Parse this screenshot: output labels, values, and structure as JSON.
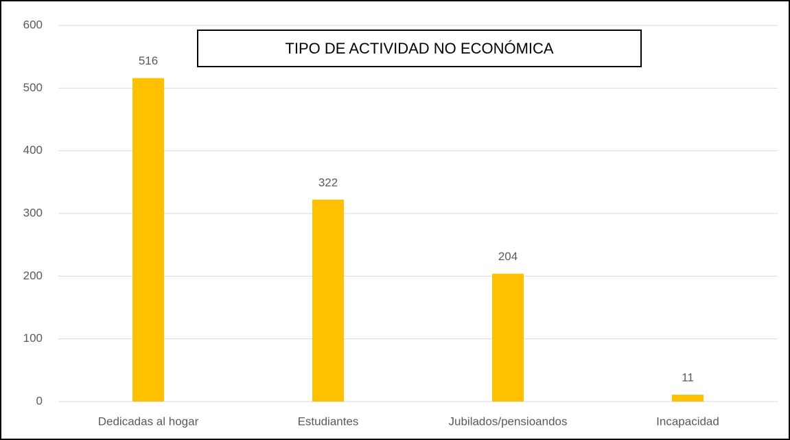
{
  "chart_data": {
    "type": "bar",
    "title": "TIPO DE ACTIVIDAD NO ECONÓMICA",
    "categories": [
      "Dedicadas al hogar",
      "Estudiantes",
      "Jubilados/pensioandos",
      "Incapacidad"
    ],
    "values": [
      516,
      322,
      204,
      11
    ],
    "color": "#ffc000",
    "ylim": [
      0,
      600
    ],
    "yticks": [
      0,
      100,
      200,
      300,
      400,
      500,
      600
    ],
    "grid": true
  }
}
